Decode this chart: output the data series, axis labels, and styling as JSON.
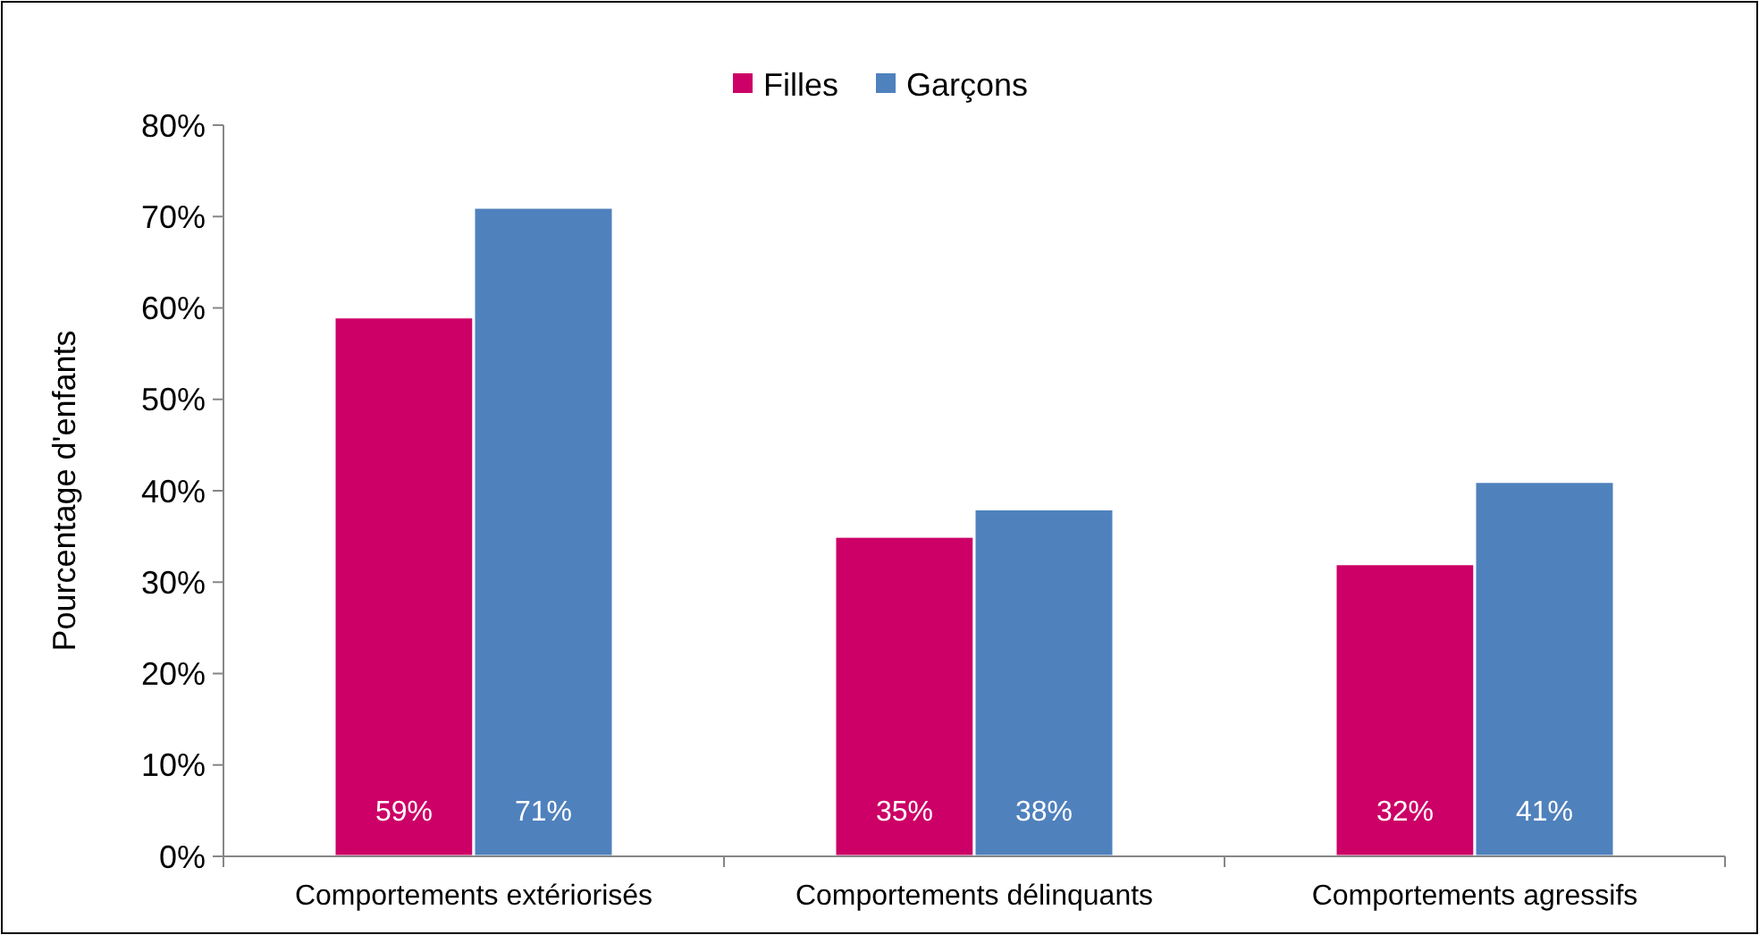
{
  "chart_data": {
    "type": "bar",
    "ylabel": "Pourcentage d'enfants",
    "categories": [
      "Comportements extériorisés",
      "Comportements délinquants",
      "Comportements agressifs"
    ],
    "series": [
      {
        "name": "Filles",
        "color": "#cc0066",
        "values": [
          59,
          35,
          32
        ],
        "value_labels": [
          "59%",
          "35%",
          "32%"
        ]
      },
      {
        "name": "Garçons",
        "color": "#4f81bd",
        "values": [
          71,
          38,
          41
        ],
        "value_labels": [
          "71%",
          "38%",
          "41%"
        ]
      }
    ],
    "ylim": [
      0,
      80
    ],
    "yticks": [
      {
        "value": 0,
        "label": "0%"
      },
      {
        "value": 10,
        "label": "10%"
      },
      {
        "value": 20,
        "label": "20%"
      },
      {
        "value": 30,
        "label": "30%"
      },
      {
        "value": 40,
        "label": "40%"
      },
      {
        "value": 50,
        "label": "50%"
      },
      {
        "value": 60,
        "label": "60%"
      },
      {
        "value": 70,
        "label": "70%"
      },
      {
        "value": 80,
        "label": "80%"
      }
    ],
    "legend": "top",
    "grid": false
  }
}
